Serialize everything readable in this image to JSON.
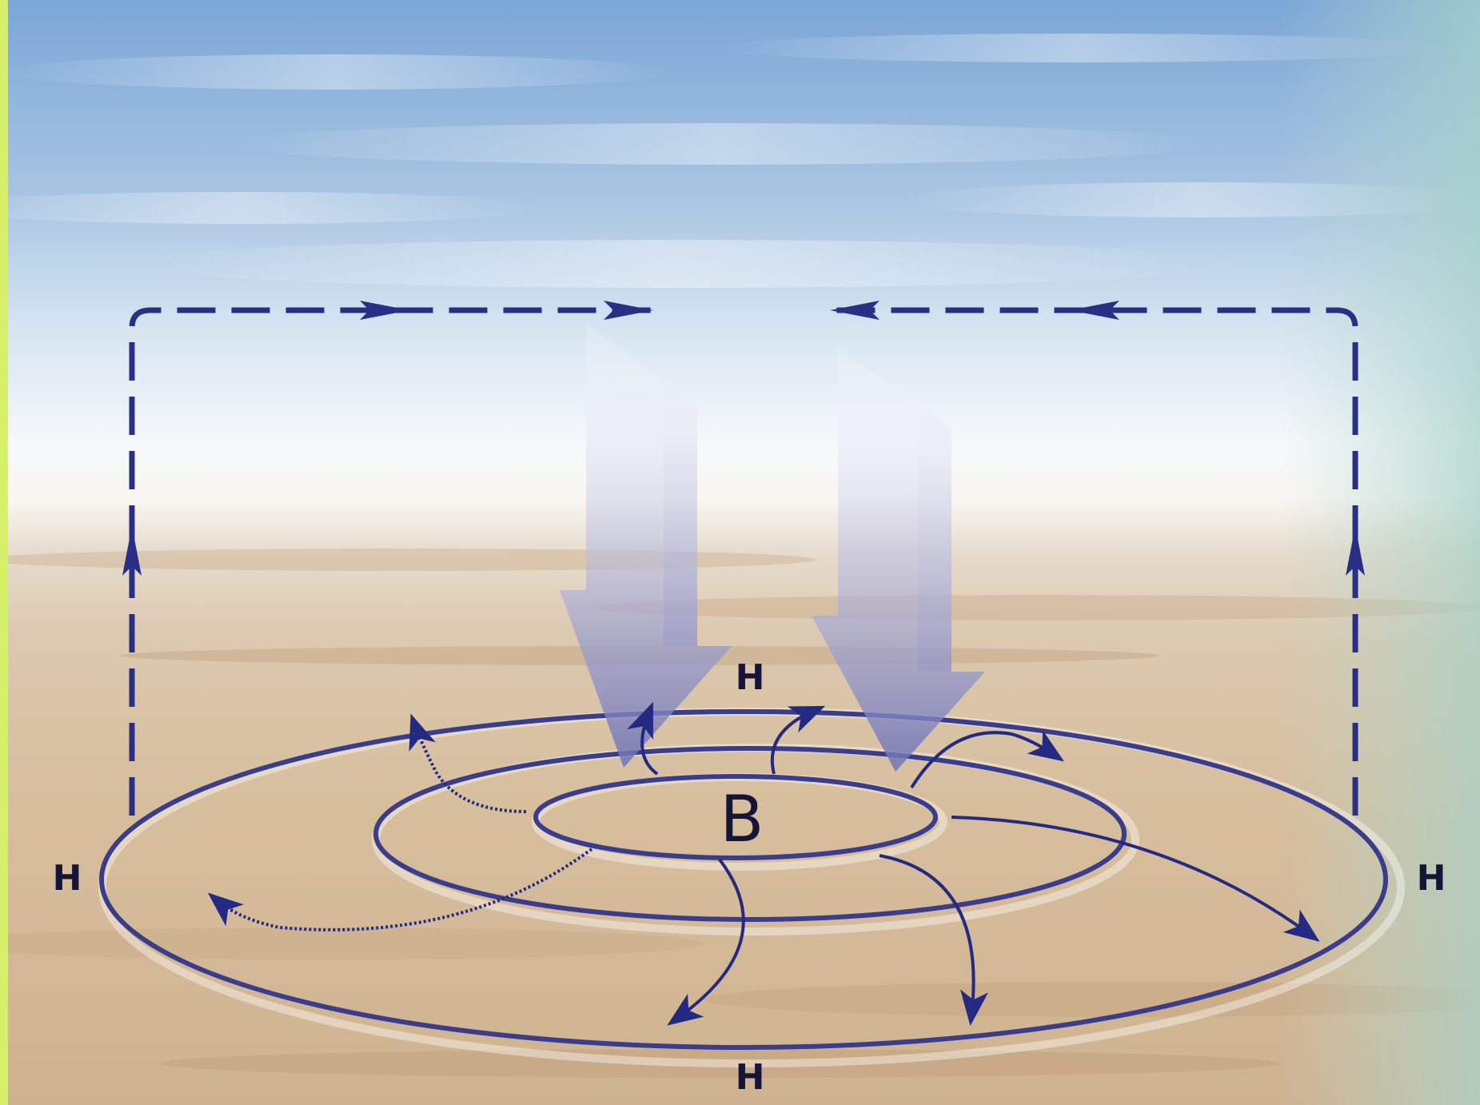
{
  "labels": {
    "center": "B",
    "top": "H",
    "left": "H",
    "right": "H",
    "bottom": "H"
  },
  "colors": {
    "arrow_dark": "#2a2f86",
    "ring": "#3a3c8c",
    "side_bar": "#d6f06a",
    "sky_top": "#7aa8d6",
    "haze": "#f4f7fb",
    "ground": "#d9bf9e"
  }
}
